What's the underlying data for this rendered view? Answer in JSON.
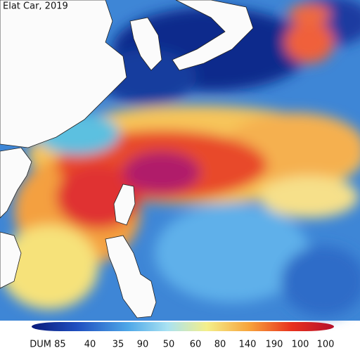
{
  "title": "Elat Car, 2019",
  "colorbar": {
    "labels": [
      "DUM 85",
      "40",
      "35",
      "90",
      "50",
      "60",
      "80",
      "140",
      "190",
      "100",
      "100"
    ]
  }
}
